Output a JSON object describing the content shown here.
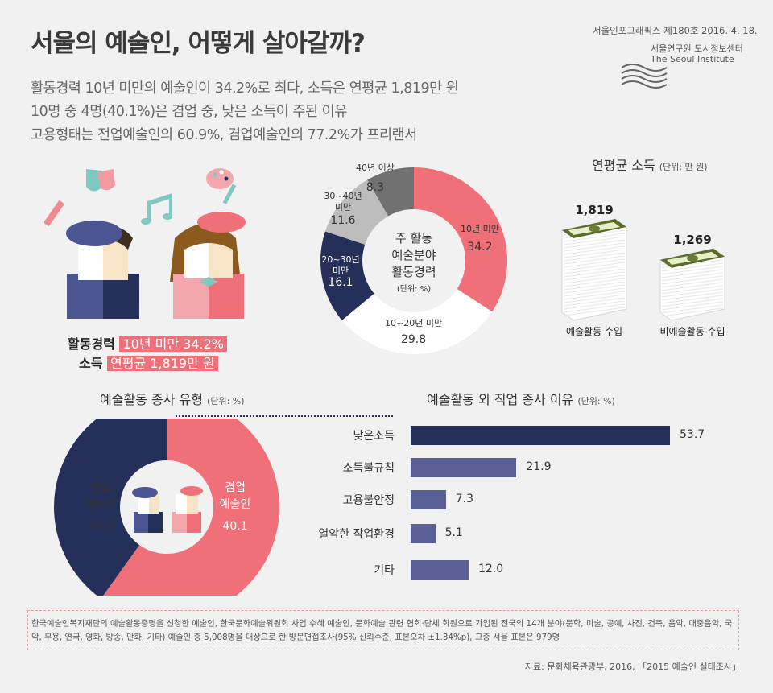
{
  "title": "서울의 예술인, 어떻게 살아갈까?",
  "subtitles": [
    "활동경력 10년 미만의 예술인이 34.2%로 최다, 소득은 연평균 1,819만 원",
    "10명 중 4명(40.1%)은 겸업 중, 낮은 소득이 주된 이유",
    "고용형태는 전업예술인의 60.9%, 겸업예술인의 77.2%가 프리랜서"
  ],
  "publisher": {
    "issue": "서울인포그래픽스 제180호 2016. 4. 18.",
    "org_kr": "서울연구원 도시정보센터",
    "org_en": "The Seoul Institute"
  },
  "highlights": {
    "career_label": "활동경력",
    "career_value": "10년 미만 34.2%",
    "income_label": "소득",
    "income_value": "연평균 1,819만 원"
  },
  "income_title": "연평균 소득",
  "income_unit": "(단위: 만 원)",
  "career_center": [
    "주 활동",
    "예술분야",
    "활동경력"
  ],
  "career_center_unit": "(단위: %)",
  "type_title": "예술활동 종사 유형",
  "type_unit": "(단위: %)",
  "reason_title": "예술활동 외 직업 종사 이유",
  "reason_unit": "(단위: %)",
  "chart_data": [
    {
      "type": "pie",
      "categories": [
        "10년 미만",
        "10~20년 미만",
        "20~30년 미만",
        "30~40년 미만",
        "40년 이상"
      ],
      "values": [
        34.2,
        29.8,
        16.1,
        11.6,
        8.3
      ],
      "colors": [
        "#ef7078",
        "#ffffff",
        "#25305a",
        "#bdbdbd",
        "#717171"
      ]
    },
    {
      "type": "bar",
      "categories": [
        "예술활동 수입",
        "비예술활동 수입"
      ],
      "values": [
        1819,
        1269
      ],
      "value_labels": [
        "1,819",
        "1,269"
      ]
    },
    {
      "type": "pie",
      "categories": [
        "전업 예술인",
        "겸업 예술인"
      ],
      "values": [
        59.9,
        40.1
      ],
      "label_lines": [
        [
          "전업",
          "예술인"
        ],
        [
          "겸업",
          "예술인"
        ]
      ],
      "colors": [
        "#ef7078",
        "#25305a"
      ]
    },
    {
      "type": "bar",
      "categories": [
        "낮은소득",
        "소득불규칙",
        "고용불안정",
        "열악한 작업환경",
        "기타"
      ],
      "values": [
        53.7,
        21.9,
        7.3,
        5.1,
        12.0
      ],
      "value_labels": [
        "53.7",
        "21.9",
        "7.3",
        "5.1",
        "12.0"
      ],
      "colors": [
        "#25305a",
        "#5a5f96",
        "#5a5f96",
        "#5a5f96",
        "#5a5f96"
      ],
      "xlim": [
        0,
        53.7
      ]
    }
  ],
  "note": "한국예술인복지재단의 예술활동증명을 신청한 예술인, 한국문화예술위원회 사업 수혜 예술인, 문화예술 관련 협회·단체 회원으로 가입된 전국의 14개 분야(문학, 미술, 공예, 사진, 건축, 음악, 대중음악, 국악, 무용, 연극, 영화, 방송, 만화, 기타) 예술인 중 5,008명을 대상으로 한 방문면접조사(95% 신뢰수준, 표본오차 ±1.34%p), 그중 서울 표본은 979명",
  "source": "자료: 문화체육관광부, 2016, 「2015 예술인 실태조사」"
}
